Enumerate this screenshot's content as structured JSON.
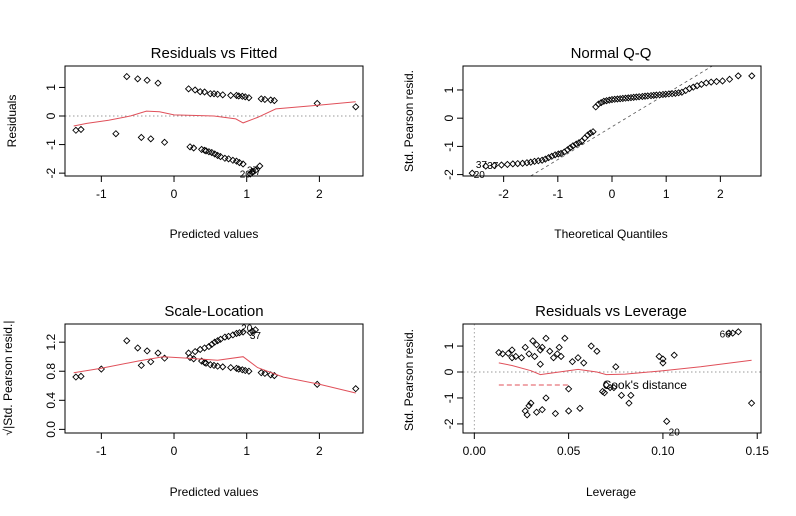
{
  "chart_data": [
    {
      "type": "scatter",
      "title": "Residuals vs Fitted",
      "xlabel": "Predicted values",
      "ylabel": "Residuals",
      "xlim": [
        -1.5,
        2.6
      ],
      "ylim": [
        -2.1,
        1.75
      ],
      "xticks": [
        -1,
        0,
        1,
        2
      ],
      "yticks": [
        -2,
        -1,
        0,
        1
      ],
      "x": [
        -1.35,
        -1.28,
        -0.65,
        -0.5,
        -0.37,
        -0.22,
        -0.8,
        -0.45,
        -0.32,
        -0.13,
        0.2,
        0.29,
        0.36,
        0.42,
        0.5,
        0.55,
        0.6,
        0.67,
        0.78,
        0.86,
        0.89,
        0.94,
        0.98,
        1.03,
        0.22,
        0.27,
        0.38,
        0.42,
        0.44,
        0.48,
        0.52,
        0.56,
        0.6,
        0.64,
        0.7,
        0.75,
        0.81,
        0.86,
        0.9,
        0.95,
        1.2,
        1.25,
        1.33,
        1.38,
        1.97,
        2.5,
        1.18,
        1.12,
        1.08,
        1.05
      ],
      "y": [
        -0.5,
        -0.47,
        1.38,
        1.3,
        1.25,
        1.15,
        -0.62,
        -0.75,
        -0.8,
        -0.92,
        0.95,
        0.91,
        0.85,
        0.84,
        0.78,
        0.78,
        0.76,
        0.74,
        0.72,
        0.72,
        0.7,
        0.69,
        0.67,
        0.64,
        -1.08,
        -1.12,
        -1.17,
        -1.2,
        -1.22,
        -1.25,
        -1.28,
        -1.33,
        -1.38,
        -1.42,
        -1.48,
        -1.5,
        -1.55,
        -1.58,
        -1.63,
        -1.68,
        0.6,
        0.58,
        0.56,
        0.54,
        0.44,
        0.32,
        -1.75,
        -1.9,
        -1.96,
        -2.03
      ],
      "smooth_x": [
        -1.38,
        -1.2,
        -0.9,
        -0.6,
        -0.38,
        -0.2,
        0.0,
        0.25,
        0.55,
        0.85,
        0.95,
        1.15,
        1.4,
        2.0,
        2.5
      ],
      "smooth_y": [
        -0.35,
        -0.26,
        -0.15,
        0.0,
        0.17,
        0.15,
        0.04,
        0.02,
        0.0,
        -0.1,
        -0.24,
        -0.05,
        0.25,
        0.38,
        0.5
      ],
      "labels": [
        {
          "text": "37",
          "x": 1.12,
          "y": -1.92
        },
        {
          "text": "20",
          "x": 0.98,
          "y": -2.02
        },
        {
          "text": "37",
          "x": 1.08,
          "y": -1.88
        }
      ],
      "reference_line": 0
    },
    {
      "type": "scatter",
      "title": "Normal Q-Q",
      "xlabel": "Theoretical Quantiles",
      "ylabel": "Std. Pearson resid.",
      "xlim": [
        -2.75,
        2.75
      ],
      "ylim": [
        -2.05,
        1.85
      ],
      "xticks": [
        -2,
        -1,
        0,
        1,
        2
      ],
      "yticks": [
        -2,
        -1,
        0,
        1
      ],
      "x": [
        -2.58,
        -2.33,
        -2.17,
        -2.04,
        -1.93,
        -1.83,
        -1.74,
        -1.65,
        -1.57,
        -1.5,
        -1.43,
        -1.36,
        -1.29,
        -1.23,
        -1.17,
        -1.11,
        -1.05,
        -0.99,
        -0.94,
        -0.88,
        -0.82,
        -0.77,
        -0.72,
        -0.66,
        -0.61,
        -0.56,
        -0.5,
        -0.45,
        -0.4,
        -0.35,
        -0.3,
        -0.25,
        -0.2,
        -0.15,
        -0.1,
        -0.05,
        0.0,
        0.05,
        0.1,
        0.15,
        0.2,
        0.25,
        0.3,
        0.35,
        0.4,
        0.45,
        0.5,
        0.56,
        0.61,
        0.66,
        0.72,
        0.77,
        0.82,
        0.88,
        0.94,
        0.99,
        1.05,
        1.11,
        1.17,
        1.23,
        1.29,
        1.36,
        1.43,
        1.5,
        1.57,
        1.65,
        1.74,
        1.83,
        1.93,
        2.04,
        2.17,
        2.33,
        2.58
      ],
      "y": [
        -1.95,
        -1.7,
        -1.68,
        -1.66,
        -1.64,
        -1.62,
        -1.61,
        -1.6,
        -1.58,
        -1.56,
        -1.53,
        -1.51,
        -1.49,
        -1.45,
        -1.4,
        -1.35,
        -1.3,
        -1.27,
        -1.25,
        -1.2,
        -1.12,
        -1.05,
        -0.98,
        -0.92,
        -0.87,
        -0.82,
        -0.7,
        -0.6,
        -0.53,
        -0.48,
        0.4,
        0.5,
        0.55,
        0.6,
        0.62,
        0.64,
        0.66,
        0.67,
        0.68,
        0.69,
        0.7,
        0.71,
        0.72,
        0.73,
        0.74,
        0.75,
        0.76,
        0.77,
        0.78,
        0.79,
        0.8,
        0.81,
        0.82,
        0.83,
        0.84,
        0.85,
        0.86,
        0.87,
        0.88,
        0.9,
        0.92,
        0.98,
        1.05,
        1.1,
        1.15,
        1.2,
        1.25,
        1.28,
        1.3,
        1.32,
        1.38,
        1.5,
        1.5
      ],
      "reference_line": {
        "from": [
          -1.5,
          -2.05
        ],
        "to": [
          1.85,
          1.85
        ]
      },
      "labels": [
        {
          "text": "37",
          "x": -2.41,
          "y": -1.62
        },
        {
          "text": "37",
          "x": -2.2,
          "y": -1.66
        },
        {
          "text": "20",
          "x": -2.45,
          "y": -1.98
        }
      ]
    },
    {
      "type": "scatter",
      "title": "Scale-Location",
      "xlabel": "Predicted values",
      "ylabel": "√|Std. Pearson resid.|",
      "xlim": [
        -1.5,
        2.6
      ],
      "ylim": [
        -0.05,
        1.45
      ],
      "xticks": [
        -1,
        0,
        1,
        2
      ],
      "yticks": [
        0.0,
        0.4,
        0.8,
        1.2
      ],
      "ytick_labels": [
        "0.0",
        "0.4",
        "0.8",
        "1.2"
      ],
      "x": [
        -1.35,
        -1.28,
        -1.0,
        -0.65,
        -0.5,
        -0.37,
        -0.22,
        -0.13,
        -0.45,
        -0.32,
        0.2,
        0.29,
        0.36,
        0.42,
        0.48,
        0.52,
        0.56,
        0.6,
        0.64,
        0.7,
        0.75,
        0.81,
        0.86,
        0.9,
        0.95,
        0.22,
        0.27,
        0.38,
        0.42,
        0.44,
        0.5,
        0.55,
        0.6,
        0.67,
        0.78,
        0.86,
        0.89,
        0.94,
        0.98,
        1.03,
        1.2,
        1.25,
        1.33,
        1.38,
        1.97,
        2.5,
        1.12,
        1.08,
        1.05
      ],
      "y": [
        0.72,
        0.73,
        0.83,
        1.22,
        1.12,
        1.08,
        1.05,
        0.98,
        0.88,
        0.93,
        1.05,
        1.07,
        1.1,
        1.12,
        1.14,
        1.17,
        1.2,
        1.22,
        1.24,
        1.27,
        1.28,
        1.3,
        1.32,
        1.33,
        1.34,
        0.99,
        0.97,
        0.94,
        0.92,
        0.91,
        0.89,
        0.88,
        0.87,
        0.86,
        0.85,
        0.84,
        0.83,
        0.82,
        0.81,
        0.8,
        0.78,
        0.77,
        0.75,
        0.74,
        0.62,
        0.56,
        1.37,
        1.35,
        1.33
      ],
      "smooth_x": [
        -1.38,
        -1.0,
        -0.5,
        -0.15,
        0.2,
        0.6,
        0.95,
        1.15,
        1.5,
        2.0,
        2.5
      ],
      "smooth_y": [
        0.78,
        0.84,
        0.94,
        1.0,
        0.98,
        0.95,
        1.0,
        0.85,
        0.72,
        0.62,
        0.5
      ],
      "labels": [
        {
          "text": "20",
          "x": 1.0,
          "y": 1.4
        },
        {
          "text": "37",
          "x": 1.12,
          "y": 1.3
        }
      ]
    },
    {
      "type": "scatter",
      "title": "Residuals vs Leverage",
      "xlabel": "Leverage",
      "ylabel": "Std. Pearson resid.",
      "xlim": [
        -0.006,
        0.152
      ],
      "ylim": [
        -2.35,
        1.85
      ],
      "xticks": [
        0.0,
        0.05,
        0.1,
        0.15
      ],
      "xtick_labels": [
        "0.00",
        "0.05",
        "0.10",
        "0.15"
      ],
      "yticks": [
        -2,
        -1,
        0,
        1
      ],
      "x": [
        0.013,
        0.015,
        0.018,
        0.02,
        0.022,
        0.025,
        0.027,
        0.029,
        0.031,
        0.032,
        0.033,
        0.035,
        0.036,
        0.038,
        0.04,
        0.042,
        0.044,
        0.046,
        0.048,
        0.05,
        0.052,
        0.055,
        0.058,
        0.062,
        0.065,
        0.068,
        0.07,
        0.072,
        0.075,
        0.078,
        0.082,
        0.027,
        0.028,
        0.029,
        0.03,
        0.033,
        0.036,
        0.038,
        0.043,
        0.05,
        0.056,
        0.069,
        0.074,
        0.083,
        0.098,
        0.1,
        0.102,
        0.106,
        0.135,
        0.137,
        0.14,
        0.147,
        0.1,
        0.035,
        0.045,
        0.02
      ],
      "y": [
        0.75,
        0.7,
        0.72,
        0.85,
        0.6,
        0.55,
        0.95,
        0.7,
        1.2,
        0.6,
        1.05,
        0.85,
        0.95,
        1.3,
        0.8,
        0.55,
        0.7,
        0.6,
        1.3,
        -0.65,
        0.4,
        0.55,
        0.35,
        1.0,
        0.8,
        -0.75,
        -0.5,
        -0.6,
        0.2,
        -0.9,
        -1.2,
        -1.5,
        -1.65,
        -1.3,
        -1.2,
        -1.55,
        -1.45,
        -1.0,
        -1.6,
        -1.5,
        -1.4,
        -0.8,
        -0.6,
        -0.9,
        0.6,
        0.5,
        -1.9,
        0.65,
        1.5,
        1.5,
        1.55,
        -1.2,
        0.35,
        0.3,
        0.95,
        0.55
      ],
      "smooth_x": [
        0.013,
        0.02,
        0.03,
        0.035,
        0.045,
        0.055,
        0.065,
        0.07,
        0.08,
        0.1,
        0.12,
        0.147
      ],
      "smooth_y": [
        0.35,
        0.25,
        0.05,
        -0.1,
        0.0,
        0.1,
        0.0,
        -0.1,
        -0.08,
        0.05,
        0.2,
        0.45
      ],
      "cooks_x": [
        0.013,
        0.05
      ],
      "cooks_y": [
        -0.5,
        -0.5
      ],
      "cooks_label": "Cook's distance",
      "labels": [
        {
          "text": "66",
          "x": 0.133,
          "y": 1.48
        },
        {
          "text": "20",
          "x": 0.106,
          "y": -2.3
        }
      ]
    }
  ],
  "panels": [
    {
      "title": "Residuals vs Fitted",
      "xlabel": "Predicted values",
      "ylabel": "Residuals"
    },
    {
      "title": "Normal Q-Q",
      "xlabel": "Theoretical Quantiles",
      "ylabel": "Std. Pearson resid."
    },
    {
      "title": "Scale-Location",
      "xlabel": "Predicted values",
      "ylabel": "√|Std. Pearson resid.|"
    },
    {
      "title": "Residuals vs Leverage",
      "xlabel": "Leverage",
      "ylabel": "Std. Pearson resid."
    }
  ],
  "colors": {
    "smooth": "#e0505a",
    "cooks": "#e0505a",
    "reference": "#9a9a9a"
  }
}
